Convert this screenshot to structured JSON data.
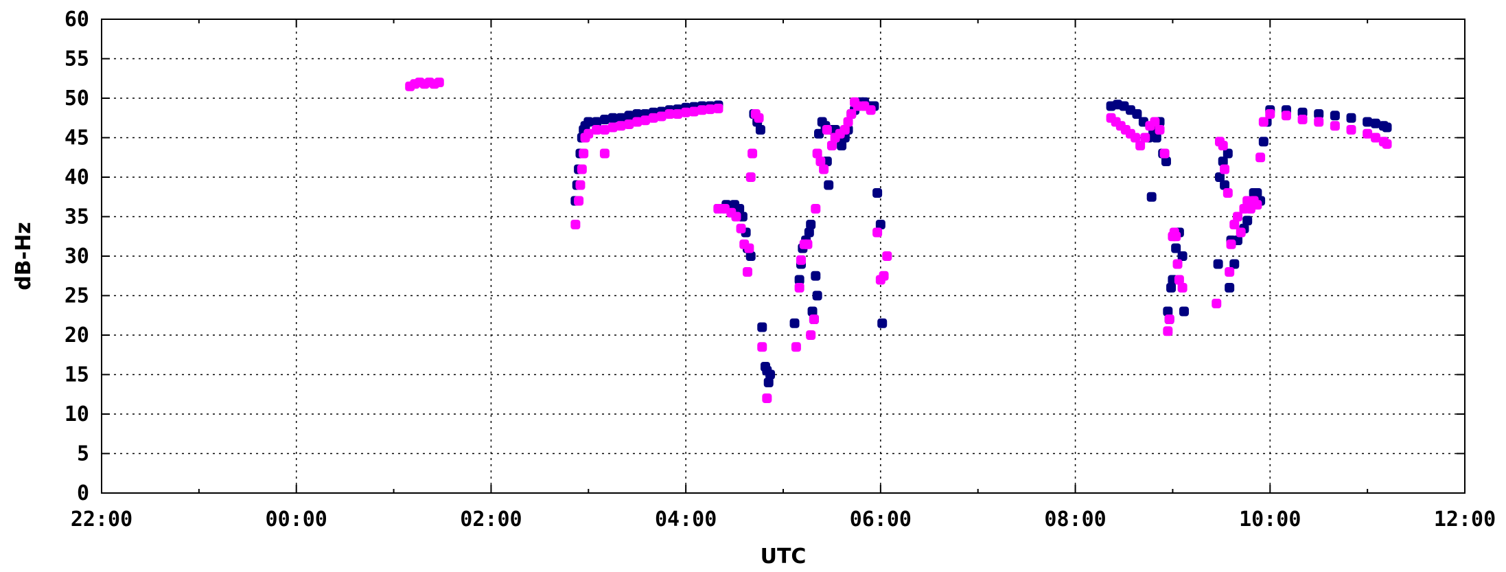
{
  "chart_data": {
    "type": "scatter",
    "title": "",
    "xlabel": "UTC",
    "ylabel": "dB-Hz",
    "x_ticks": [
      "22:00",
      "00:00",
      "02:00",
      "04:00",
      "06:00",
      "08:00",
      "10:00",
      "12:00"
    ],
    "y_ticks": [
      "0",
      "5",
      "10",
      "15",
      "20",
      "25",
      "30",
      "35",
      "40",
      "45",
      "50",
      "55",
      "60"
    ],
    "xlim": [
      "22:00",
      "12:00 (+1 day)"
    ],
    "ylim": [
      0,
      60
    ],
    "grid": true,
    "legend": "none",
    "series": [
      {
        "color": "#000080",
        "points": [
          [
            "02:52",
            37
          ],
          [
            "02:53",
            39
          ],
          [
            "02:54",
            41
          ],
          [
            "02:55",
            43
          ],
          [
            "02:56",
            45
          ],
          [
            "02:57",
            46
          ],
          [
            "02:58",
            46.5
          ],
          [
            "03:00",
            47
          ],
          [
            "03:05",
            47
          ],
          [
            "03:10",
            47.3
          ],
          [
            "03:15",
            47.5
          ],
          [
            "03:20",
            47.5
          ],
          [
            "03:25",
            47.8
          ],
          [
            "03:30",
            48
          ],
          [
            "03:35",
            48
          ],
          [
            "03:40",
            48.2
          ],
          [
            "03:45",
            48.3
          ],
          [
            "03:50",
            48.5
          ],
          [
            "03:55",
            48.6
          ],
          [
            "04:00",
            48.8
          ],
          [
            "04:05",
            48.9
          ],
          [
            "04:10",
            49
          ],
          [
            "04:15",
            49
          ],
          [
            "04:20",
            49.1
          ],
          [
            "04:20",
            36
          ],
          [
            "04:25",
            36.5
          ],
          [
            "04:30",
            36.5
          ],
          [
            "04:33",
            36
          ],
          [
            "04:35",
            35
          ],
          [
            "04:37",
            33
          ],
          [
            "04:38",
            31
          ],
          [
            "04:40",
            30
          ],
          [
            "04:42",
            48
          ],
          [
            "04:44",
            47
          ],
          [
            "04:46",
            46
          ],
          [
            "04:47",
            21
          ],
          [
            "04:49",
            16
          ],
          [
            "04:50",
            15.5
          ],
          [
            "04:51",
            14
          ],
          [
            "04:52",
            15
          ],
          [
            "05:07",
            21.5
          ],
          [
            "05:10",
            27
          ],
          [
            "05:11",
            29
          ],
          [
            "05:12",
            31
          ],
          [
            "05:14",
            32
          ],
          [
            "05:16",
            33
          ],
          [
            "05:17",
            34
          ],
          [
            "05:18",
            23
          ],
          [
            "05:19",
            22
          ],
          [
            "05:20",
            27.5
          ],
          [
            "05:21",
            25
          ],
          [
            "05:22",
            45.5
          ],
          [
            "05:24",
            47
          ],
          [
            "05:26",
            46.5
          ],
          [
            "05:27",
            42
          ],
          [
            "05:28",
            39
          ],
          [
            "05:30",
            46
          ],
          [
            "05:32",
            46
          ],
          [
            "05:34",
            45
          ],
          [
            "05:36",
            44
          ],
          [
            "05:38",
            45
          ],
          [
            "05:40",
            46
          ],
          [
            "05:42",
            48
          ],
          [
            "05:44",
            48.5
          ],
          [
            "05:46",
            49
          ],
          [
            "05:48",
            49.5
          ],
          [
            "05:50",
            49.5
          ],
          [
            "05:52",
            49
          ],
          [
            "05:54",
            49
          ],
          [
            "05:56",
            49
          ],
          [
            "05:58",
            38
          ],
          [
            "06:00",
            34
          ],
          [
            "06:01",
            21.5
          ],
          [
            "08:22",
            49
          ],
          [
            "08:26",
            49.2
          ],
          [
            "08:30",
            49
          ],
          [
            "08:34",
            48.5
          ],
          [
            "08:38",
            48
          ],
          [
            "08:42",
            47
          ],
          [
            "08:45",
            45
          ],
          [
            "08:47",
            37.5
          ],
          [
            "08:48",
            46
          ],
          [
            "08:50",
            45
          ],
          [
            "08:52",
            47
          ],
          [
            "08:54",
            43
          ],
          [
            "08:56",
            42
          ],
          [
            "08:57",
            23
          ],
          [
            "08:58",
            22
          ],
          [
            "08:59",
            26
          ],
          [
            "09:00",
            27
          ],
          [
            "09:02",
            31
          ],
          [
            "09:04",
            33
          ],
          [
            "09:06",
            30
          ],
          [
            "09:07",
            23
          ],
          [
            "09:28",
            29
          ],
          [
            "09:29",
            40
          ],
          [
            "09:31",
            42
          ],
          [
            "09:32",
            39
          ],
          [
            "09:34",
            43
          ],
          [
            "09:35",
            26
          ],
          [
            "09:36",
            32
          ],
          [
            "09:38",
            29
          ],
          [
            "09:40",
            32
          ],
          [
            "09:44",
            33.5
          ],
          [
            "09:46",
            34.5
          ],
          [
            "09:48",
            36.5
          ],
          [
            "09:50",
            38
          ],
          [
            "09:52",
            38
          ],
          [
            "09:54",
            37
          ],
          [
            "09:56",
            44.5
          ],
          [
            "09:58",
            47
          ],
          [
            "10:00",
            48.5
          ],
          [
            "10:10",
            48.5
          ],
          [
            "10:20",
            48.2
          ],
          [
            "10:30",
            48
          ],
          [
            "10:40",
            47.8
          ],
          [
            "10:50",
            47.5
          ],
          [
            "11:00",
            47
          ],
          [
            "11:05",
            46.8
          ],
          [
            "11:10",
            46.5
          ],
          [
            "11:12",
            46.3
          ]
        ]
      },
      {
        "color": "#ff00ff",
        "points": [
          [
            "01:10",
            51.5
          ],
          [
            "01:13",
            51.8
          ],
          [
            "01:16",
            52
          ],
          [
            "01:19",
            51.8
          ],
          [
            "01:22",
            52
          ],
          [
            "01:25",
            51.8
          ],
          [
            "01:28",
            52
          ],
          [
            "02:52",
            34
          ],
          [
            "02:54",
            37
          ],
          [
            "02:55",
            39
          ],
          [
            "02:56",
            41
          ],
          [
            "02:57",
            43
          ],
          [
            "02:58",
            45
          ],
          [
            "03:00",
            45.5
          ],
          [
            "03:10",
            43
          ],
          [
            "03:05",
            46
          ],
          [
            "03:10",
            46
          ],
          [
            "03:15",
            46.3
          ],
          [
            "03:20",
            46.5
          ],
          [
            "03:25",
            46.7
          ],
          [
            "03:30",
            47
          ],
          [
            "03:35",
            47.2
          ],
          [
            "03:40",
            47.5
          ],
          [
            "03:45",
            47.7
          ],
          [
            "03:50",
            48
          ],
          [
            "03:55",
            48
          ],
          [
            "04:00",
            48.2
          ],
          [
            "04:05",
            48.3
          ],
          [
            "04:10",
            48.5
          ],
          [
            "04:15",
            48.6
          ],
          [
            "04:20",
            48.7
          ],
          [
            "04:20",
            36
          ],
          [
            "04:24",
            36
          ],
          [
            "04:28",
            35.5
          ],
          [
            "04:31",
            35
          ],
          [
            "04:34",
            33.5
          ],
          [
            "04:36",
            31.5
          ],
          [
            "04:38",
            28
          ],
          [
            "04:39",
            31
          ],
          [
            "04:40",
            40
          ],
          [
            "04:41",
            43
          ],
          [
            "04:43",
            48
          ],
          [
            "04:45",
            47.5
          ],
          [
            "04:47",
            18.5
          ],
          [
            "04:50",
            12
          ],
          [
            "05:08",
            18.5
          ],
          [
            "05:10",
            26
          ],
          [
            "05:11",
            29.5
          ],
          [
            "05:13",
            31.5
          ],
          [
            "05:15",
            31.5
          ],
          [
            "05:17",
            20
          ],
          [
            "05:19",
            22
          ],
          [
            "05:20",
            36
          ],
          [
            "05:21",
            43
          ],
          [
            "05:23",
            42
          ],
          [
            "05:25",
            41
          ],
          [
            "05:27",
            46
          ],
          [
            "05:30",
            44
          ],
          [
            "05:32",
            45
          ],
          [
            "05:35",
            45.5
          ],
          [
            "05:38",
            46
          ],
          [
            "05:40",
            47
          ],
          [
            "05:42",
            48
          ],
          [
            "05:44",
            49.5
          ],
          [
            "05:46",
            49
          ],
          [
            "05:50",
            49
          ],
          [
            "05:54",
            48.5
          ],
          [
            "05:58",
            33
          ],
          [
            "06:00",
            27
          ],
          [
            "06:02",
            27.5
          ],
          [
            "06:04",
            30
          ],
          [
            "08:22",
            47.5
          ],
          [
            "08:25",
            47
          ],
          [
            "08:28",
            46.5
          ],
          [
            "08:31",
            46
          ],
          [
            "08:34",
            45.5
          ],
          [
            "08:37",
            45
          ],
          [
            "08:40",
            44
          ],
          [
            "08:43",
            45
          ],
          [
            "08:46",
            46.5
          ],
          [
            "08:49",
            47
          ],
          [
            "08:52",
            46
          ],
          [
            "08:55",
            43
          ],
          [
            "08:57",
            20.5
          ],
          [
            "08:58",
            22
          ],
          [
            "09:00",
            32.5
          ],
          [
            "09:01",
            33
          ],
          [
            "09:02",
            32.5
          ],
          [
            "09:03",
            29
          ],
          [
            "09:04",
            27
          ],
          [
            "09:06",
            26
          ],
          [
            "09:27",
            24
          ],
          [
            "09:29",
            44.5
          ],
          [
            "09:31",
            44
          ],
          [
            "09:32",
            41
          ],
          [
            "09:34",
            38
          ],
          [
            "09:35",
            28
          ],
          [
            "09:36",
            31.5
          ],
          [
            "09:38",
            34
          ],
          [
            "09:40",
            35
          ],
          [
            "09:42",
            33
          ],
          [
            "09:44",
            36
          ],
          [
            "09:46",
            37
          ],
          [
            "09:48",
            36
          ],
          [
            "09:50",
            37
          ],
          [
            "09:52",
            36.5
          ],
          [
            "09:54",
            42.5
          ],
          [
            "09:56",
            47
          ],
          [
            "10:00",
            48
          ],
          [
            "10:10",
            47.8
          ],
          [
            "10:20",
            47.3
          ],
          [
            "10:30",
            47
          ],
          [
            "10:40",
            46.5
          ],
          [
            "10:50",
            46
          ],
          [
            "11:00",
            45.5
          ],
          [
            "11:05",
            45
          ],
          [
            "11:10",
            44.5
          ],
          [
            "11:12",
            44.2
          ]
        ]
      }
    ]
  }
}
